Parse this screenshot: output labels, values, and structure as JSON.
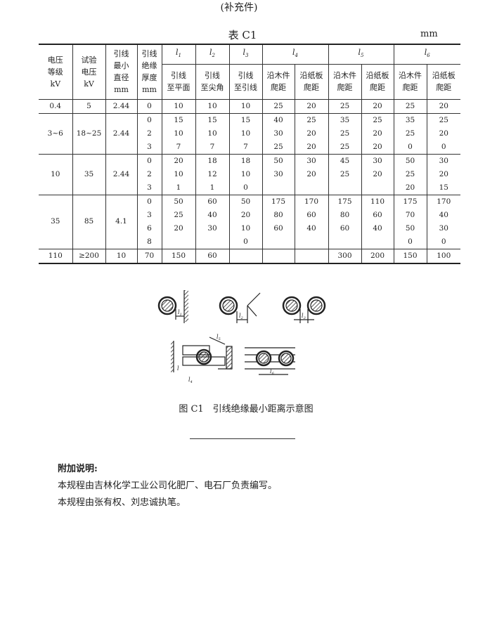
{
  "supplement": "(补充件)",
  "table_title": "表 C1",
  "unit": "mm",
  "header": {
    "voltage": [
      "电压",
      "等级",
      "kV"
    ],
    "test_voltage": [
      "试验",
      "电压",
      "kV"
    ],
    "min_diameter": [
      "引线",
      "最小",
      "直径",
      "mm"
    ],
    "insulation": [
      "引线",
      "绝缘",
      "厚度",
      "mm"
    ],
    "l_labels": [
      "l1",
      "l2",
      "l3",
      "l4",
      "l5",
      "l6"
    ],
    "l1_sub": [
      "引线",
      "至平面"
    ],
    "l2_sub": [
      "引线",
      "至尖角"
    ],
    "l3_sub": [
      "引线",
      "至引线"
    ],
    "wood": [
      "沿木件",
      "爬距"
    ],
    "paper": [
      "沿纸板",
      "爬距"
    ]
  },
  "rows": [
    [
      [
        "0.4"
      ],
      [
        "5"
      ],
      [
        "2.44"
      ],
      [
        "0"
      ],
      [
        "10"
      ],
      [
        "10"
      ],
      [
        "10"
      ],
      [
        "25"
      ],
      [
        "20"
      ],
      [
        "25"
      ],
      [
        "20"
      ],
      [
        "25"
      ],
      [
        "20"
      ]
    ],
    [
      [
        "3~6"
      ],
      [
        "18~25"
      ],
      [
        "2.44"
      ],
      [
        "0",
        "2",
        "3"
      ],
      [
        "15",
        "10",
        "7"
      ],
      [
        "15",
        "10",
        "7"
      ],
      [
        "15",
        "10",
        "7"
      ],
      [
        "40",
        "30",
        "25"
      ],
      [
        "25",
        "20",
        "20"
      ],
      [
        "35",
        "25",
        "25"
      ],
      [
        "25",
        "20",
        "20"
      ],
      [
        "35",
        "25",
        "0"
      ],
      [
        "25",
        "20",
        "0"
      ]
    ],
    [
      [
        "10"
      ],
      [
        "35"
      ],
      [
        "2.44"
      ],
      [
        "0",
        "2",
        "3"
      ],
      [
        "20",
        "10",
        "1"
      ],
      [
        "18",
        "12",
        "1"
      ],
      [
        "18",
        "10",
        "0"
      ],
      [
        "50",
        "30",
        ""
      ],
      [
        "30",
        "20",
        ""
      ],
      [
        "45",
        "25",
        ""
      ],
      [
        "30",
        "20",
        ""
      ],
      [
        "50",
        "25",
        "20"
      ],
      [
        "30",
        "20",
        "15"
      ]
    ],
    [
      [
        "35"
      ],
      [
        "85"
      ],
      [
        "4.1"
      ],
      [
        "0",
        "3",
        "6",
        "8"
      ],
      [
        "50",
        "25",
        "20",
        ""
      ],
      [
        "60",
        "40",
        "30",
        ""
      ],
      [
        "50",
        "20",
        "10",
        "0"
      ],
      [
        "175",
        "80",
        "60",
        ""
      ],
      [
        "170",
        "60",
        "40",
        ""
      ],
      [
        "175",
        "80",
        "60",
        ""
      ],
      [
        "110",
        "60",
        "40",
        ""
      ],
      [
        "175",
        "70",
        "50",
        "0"
      ],
      [
        "170",
        "40",
        "30",
        "0"
      ]
    ],
    [
      [
        "110"
      ],
      [
        "≥200"
      ],
      [
        "10"
      ],
      [
        "70"
      ],
      [
        "150"
      ],
      [
        "60"
      ],
      [
        ""
      ],
      [
        ""
      ],
      [
        ""
      ],
      [
        "300"
      ],
      [
        "200"
      ],
      [
        "150"
      ],
      [
        "100"
      ]
    ]
  ],
  "figure_labels": [
    "l1",
    "l2",
    "l3",
    "l5",
    "l",
    "l4",
    "l6"
  ],
  "caption": "图 C1　引线绝缘最小距离示意图",
  "notes": {
    "title": "附加说明:",
    "lines": [
      "本规程由吉林化学工业公司化肥厂、电石厂负责编写。",
      "本规程由张有权、刘忠诚执笔。"
    ]
  }
}
